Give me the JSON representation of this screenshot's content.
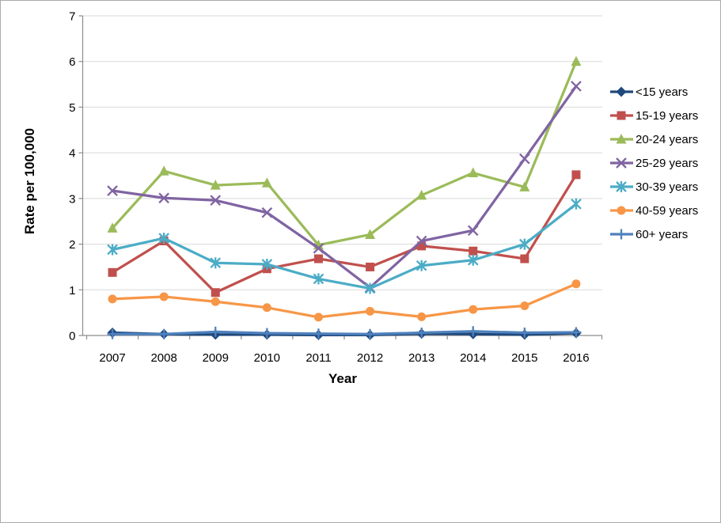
{
  "figure": {
    "background": "#FFFFFF",
    "border_color": "#ABABAB"
  },
  "chart_data": {
    "type": "line",
    "title": "",
    "xlabel": "Year",
    "ylabel": "Rate per 100,000",
    "categories": [
      "2007",
      "2008",
      "2009",
      "2010",
      "2011",
      "2012",
      "2013",
      "2014",
      "2015",
      "2016"
    ],
    "ylim": [
      0,
      7
    ],
    "yticks": [
      0,
      1,
      2,
      3,
      4,
      5,
      6,
      7
    ],
    "grid": "horizontal",
    "gridline_color": "#D9D9D9",
    "axis_color": "#8C8C8C",
    "text_color": "#000000",
    "legend_position": "right",
    "series": [
      {
        "name": "<15 years",
        "color": "#1F497D",
        "marker": "diamond",
        "values": [
          0.06,
          0.03,
          0.02,
          0.02,
          0.01,
          0.01,
          0.04,
          0.03,
          0.02,
          0.05
        ]
      },
      {
        "name": "15-19 years",
        "color": "#C0504D",
        "marker": "square",
        "values": [
          1.38,
          2.07,
          0.94,
          1.46,
          1.68,
          1.5,
          1.96,
          1.85,
          1.68,
          3.52
        ]
      },
      {
        "name": "20-24 years",
        "color": "#9BBB59",
        "marker": "triangle",
        "values": [
          2.35,
          3.6,
          3.29,
          3.34,
          1.98,
          2.21,
          3.07,
          3.56,
          3.25,
          6.0
        ]
      },
      {
        "name": "25-29 years",
        "color": "#8064A2",
        "marker": "x",
        "values": [
          3.17,
          3.01,
          2.96,
          2.69,
          1.91,
          1.05,
          2.07,
          2.3,
          3.87,
          5.46
        ]
      },
      {
        "name": "30-39 years",
        "color": "#4BACC6",
        "marker": "star",
        "values": [
          1.88,
          2.13,
          1.59,
          1.56,
          1.24,
          1.03,
          1.53,
          1.65,
          2.0,
          2.88
        ]
      },
      {
        "name": "40-59 years",
        "color": "#F79646",
        "marker": "circle",
        "values": [
          0.8,
          0.85,
          0.74,
          0.61,
          0.4,
          0.53,
          0.41,
          0.57,
          0.65,
          1.13
        ]
      },
      {
        "name": "60+ years",
        "color": "#4F81BD",
        "marker": "plus",
        "values": [
          0.03,
          0.03,
          0.08,
          0.05,
          0.04,
          0.03,
          0.06,
          0.09,
          0.06,
          0.07
        ]
      }
    ]
  }
}
